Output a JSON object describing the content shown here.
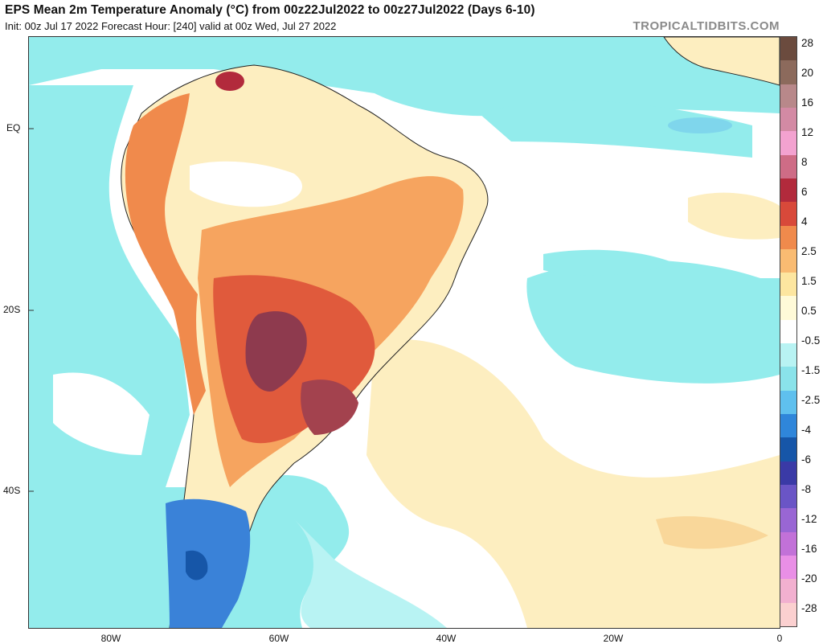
{
  "header": {
    "title": "EPS Mean 2m Temperature Anomaly (°C) from 00z22Jul2022 to 00z27Jul2022 (Days 6-10)",
    "subtitle": "Init: 00z Jul 17 2022   Forecast Hour: [240]   valid at 00z Wed, Jul 27 2022",
    "brand": "TROPICALTIDBITS.COM"
  },
  "map": {
    "lat_labels": [
      "EQ",
      "20S",
      "40S"
    ],
    "lon_labels": [
      "80W",
      "60W",
      "40W",
      "20W",
      "0"
    ],
    "colors": {
      "ocean_cool": "#93ecec",
      "neutral": "#ffffff",
      "warm_light": "#fdeec0",
      "warm_mid": "#f6a45f",
      "warm_strong": "#e05a3c",
      "warm_max": "#8e3a4e",
      "cold": "#3a82d8"
    }
  },
  "colorbar": {
    "labels": [
      "28",
      "20",
      "16",
      "12",
      "8",
      "6",
      "4",
      "2.5",
      "1.5",
      "0.5",
      "-0.5",
      "-1.5",
      "-2.5",
      "-4",
      "-6",
      "-8",
      "-12",
      "-16",
      "-20",
      "-28"
    ],
    "colors": [
      "#6b4b3e",
      "#8c6a5c",
      "#b8888a",
      "#d38aa4",
      "#f3a2d0",
      "#ce6c86",
      "#b22a3c",
      "#d8493a",
      "#f08a4c",
      "#f9bb72",
      "#fde6a0",
      "#fffad8",
      "#ffffff",
      "#b8f3f3",
      "#8ae3ea",
      "#5fc0ee",
      "#2f86da",
      "#1656a8",
      "#3a3aa6",
      "#6a55c6",
      "#9966d4",
      "#c271d8",
      "#e98fe6",
      "#f2b0d0",
      "#fbd0d0"
    ]
  }
}
